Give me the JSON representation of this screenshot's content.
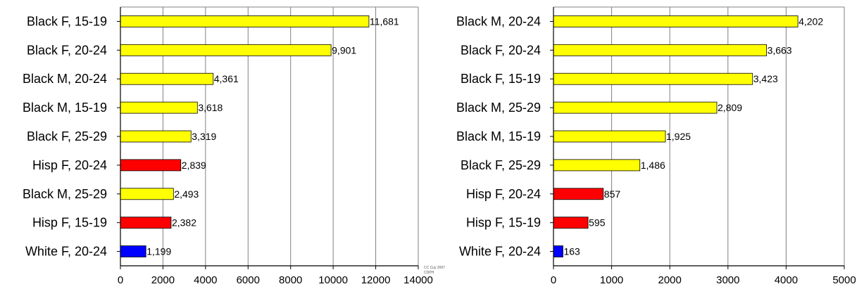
{
  "chart_data": [
    {
      "type": "bar",
      "orientation": "horizontal",
      "categories": [
        "Black F, 15-19",
        "Black F, 20-24",
        "Black M, 20-24",
        "Black M, 15-19",
        "Black F, 25-29",
        "Hisp F, 20-24",
        "Black M, 25-29",
        "Hisp F, 15-19",
        "White F, 20-24"
      ],
      "values": [
        11681,
        9901,
        4361,
        3618,
        3319,
        2839,
        2493,
        2382,
        1199
      ],
      "value_labels": [
        "11,681",
        "9,901",
        "4,361",
        "3,618",
        "3,319",
        "2,839",
        "2,493",
        "2,382",
        "1,199"
      ],
      "bar_colors": [
        "#ffff00",
        "#ffff00",
        "#ffff00",
        "#ffff00",
        "#ffff00",
        "#ff0000",
        "#ffff00",
        "#ff0000",
        "#0000ff"
      ],
      "xlim": [
        0,
        14000
      ],
      "xticks": [
        0,
        2000,
        4000,
        6000,
        8000,
        10000,
        12000,
        14000
      ],
      "grid": "vertical",
      "legend": "none"
    },
    {
      "type": "bar",
      "orientation": "horizontal",
      "categories": [
        "Black M, 20-24",
        "Black F, 20-24",
        "Black F, 15-19",
        "Black M, 25-29",
        "Black M, 15-19",
        "Black F, 25-29",
        "Hisp F, 20-24",
        "Hisp F, 15-19",
        "White F, 20-24"
      ],
      "values": [
        4202,
        3663,
        3423,
        2809,
        1925,
        1486,
        857,
        595,
        163
      ],
      "value_labels": [
        "4,202",
        "3,663",
        "3,423",
        "2,809",
        "1,925",
        "1,486",
        "857",
        "595",
        "163"
      ],
      "bar_colors": [
        "#ffff00",
        "#ffff00",
        "#ffff00",
        "#ffff00",
        "#ffff00",
        "#ffff00",
        "#ff0000",
        "#ff0000",
        "#0000ff"
      ],
      "xlim": [
        0,
        5000
      ],
      "xticks": [
        0,
        1000,
        2000,
        3000,
        4000,
        5000
      ],
      "grid": "vertical",
      "legend": "none"
    }
  ],
  "credit": {
    "line1": "CC Cuy 2007",
    "line2": "CDPH"
  }
}
